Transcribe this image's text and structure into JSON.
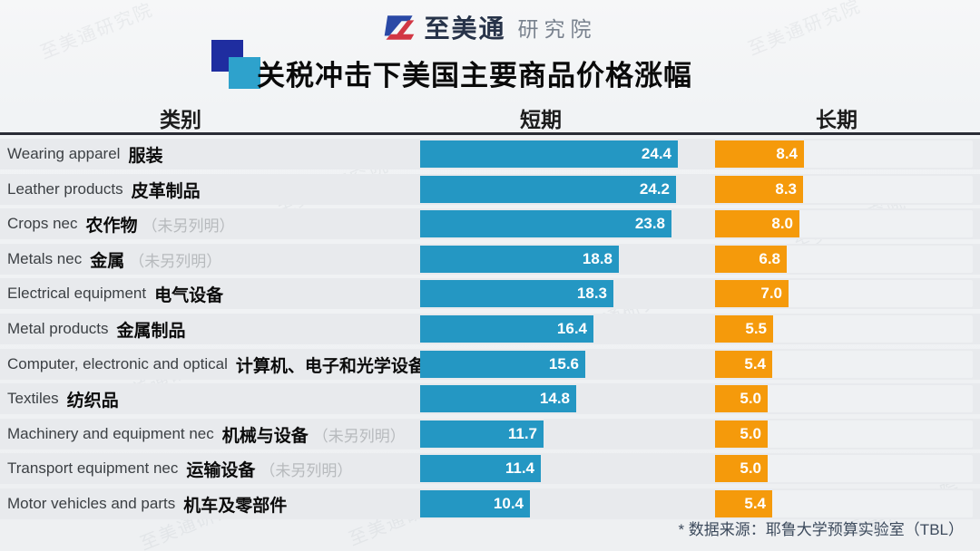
{
  "brand": {
    "name": "至美通",
    "suffix": "研究院"
  },
  "title": "关税冲击下美国主要商品价格涨幅",
  "columns": {
    "category": "类别",
    "short": "短期",
    "long": "长期"
  },
  "footer": {
    "source": "* 数据来源：耶鲁大学预算实验室（TBL）"
  },
  "watermark_text": "至美通研究院",
  "colors": {
    "short_bar": "#2497c3",
    "long_bar": "#f59a0b",
    "logo_blue": "#2a49a6",
    "logo_red": "#d23744",
    "title_square_dark": "#1f2da0",
    "title_square_light": "#2ea2cc"
  },
  "chart_data": {
    "type": "bar",
    "orientation": "horizontal",
    "title": "关税冲击下美国主要商品价格涨幅",
    "legend_position": "column-headers",
    "value_range": [
      0,
      25
    ],
    "series": [
      {
        "name": "短期",
        "color": "#2497c3",
        "values": [
          24.4,
          24.2,
          23.8,
          18.8,
          18.3,
          16.4,
          15.6,
          14.8,
          11.7,
          11.4,
          10.4
        ]
      },
      {
        "name": "长期",
        "color": "#f59a0b",
        "values": [
          8.4,
          8.3,
          8.0,
          6.8,
          7.0,
          5.5,
          5.4,
          5.0,
          5.0,
          5.0,
          5.4
        ]
      }
    ],
    "categories": [
      {
        "en": "Wearing apparel",
        "zh": "服装",
        "note": ""
      },
      {
        "en": "Leather products",
        "zh": "皮革制品",
        "note": ""
      },
      {
        "en": "Crops nec",
        "zh": "农作物",
        "note": "（未另列明）"
      },
      {
        "en": "Metals nec",
        "zh": "金属",
        "note": "（未另列明）"
      },
      {
        "en": "Electrical equipment",
        "zh": "电气设备",
        "note": ""
      },
      {
        "en": "Metal products",
        "zh": "金属制品",
        "note": ""
      },
      {
        "en": "Computer, electronic and optical",
        "zh": "计算机、电子和光学设备",
        "note": ""
      },
      {
        "en": "Textiles",
        "zh": "纺织品",
        "note": ""
      },
      {
        "en": "Machinery and equipment nec",
        "zh": "机械与设备",
        "note": "（未另列明）"
      },
      {
        "en": "Transport equipment nec",
        "zh": "运输设备",
        "note": "（未另列明）"
      },
      {
        "en": "Motor vehicles and parts",
        "zh": "机车及零部件",
        "note": ""
      }
    ]
  }
}
